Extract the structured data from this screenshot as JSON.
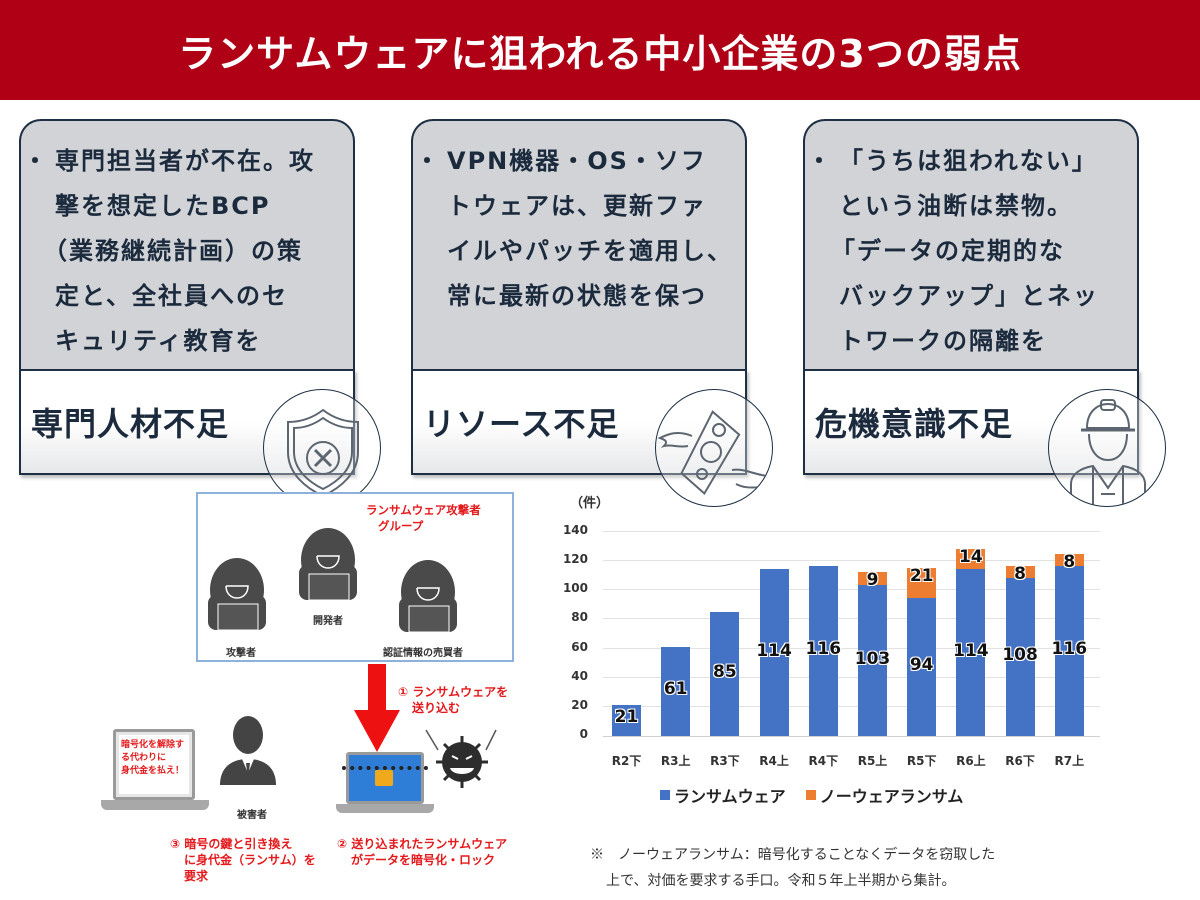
{
  "banner": {
    "title": "ランサムウェアに狙われる中小企業の3つの弱点",
    "color": "#b00015"
  },
  "cards": [
    {
      "lines": [
        "専門担当者が不在。攻",
        "撃を想定したBCP",
        "（業務継続計画）の策",
        "定と、全社員へのセ",
        "キュリティ教育を"
      ],
      "label": "専門人材不足",
      "icon": "shield-x-icon"
    },
    {
      "lines": [
        "VPN機器・OS・ソフ",
        "トウェアは、更新ファ",
        "イルやパッチを適用し、",
        "常に最新の状態を保つ"
      ],
      "label": "リソース不足",
      "icon": "flying-money-icon"
    },
    {
      "lines": [
        "「うちは狙われない」",
        "という油断は禁物。",
        "「データの定期的な",
        "バックアップ」とネッ",
        "トワークの隔離を"
      ],
      "label": "危機意識不足",
      "icon": "worker-helmet-icon"
    }
  ],
  "diagram": {
    "group_title_1": "ランサムウェア攻撃者",
    "group_title_2": "グループ",
    "roles": [
      "攻撃者",
      "開発者",
      "認証情報の売買者"
    ],
    "victim_label": "被害者",
    "ransom_screen": [
      "暗号化を解除す",
      "る代わりに",
      "身代金を払え！"
    ],
    "step1": [
      "① ランサムウェアを",
      "送り込む"
    ],
    "step2": [
      "② 送り込まれたランサムウェア",
      "がデータを暗号化・ロック"
    ],
    "step3": [
      "③ 暗号の鍵と引き換え",
      "に身代金（ランサム）を",
      "要求"
    ]
  },
  "chart_data": {
    "type": "bar",
    "stacked": true,
    "unit_label": "（件）",
    "categories": [
      "R2下",
      "R3上",
      "R3下",
      "R4上",
      "R4下",
      "R5上",
      "R5下",
      "R6上",
      "R6下",
      "R7上"
    ],
    "series": [
      {
        "name": "ランサムウェア",
        "color": "#4472c4",
        "values": [
          21,
          61,
          85,
          114,
          116,
          103,
          94,
          114,
          108,
          116
        ]
      },
      {
        "name": "ノーウェアランサム",
        "color": "#ed7d31",
        "values": [
          0,
          0,
          0,
          0,
          0,
          9,
          21,
          14,
          8,
          8
        ]
      }
    ],
    "yticks": [
      "140",
      "120",
      "100",
      "80",
      "60",
      "40",
      "20",
      "0"
    ],
    "ylim": [
      0,
      140
    ],
    "grid": true,
    "legend_position": "bottom"
  },
  "chart_labels": {
    "ransomware": [
      "21",
      "61",
      "85",
      "114",
      "116",
      "103",
      "94",
      "114",
      "108",
      "116"
    ],
    "noware": [
      "",
      "",
      "",
      "",
      "",
      "9",
      "21",
      "14",
      "8",
      "8"
    ]
  },
  "note": {
    "line1": "※　ノーウェアランサム：暗号化することなくデータを窃取した",
    "line2": "上で、対価を要求する手口。令和５年上半期から集計。"
  }
}
